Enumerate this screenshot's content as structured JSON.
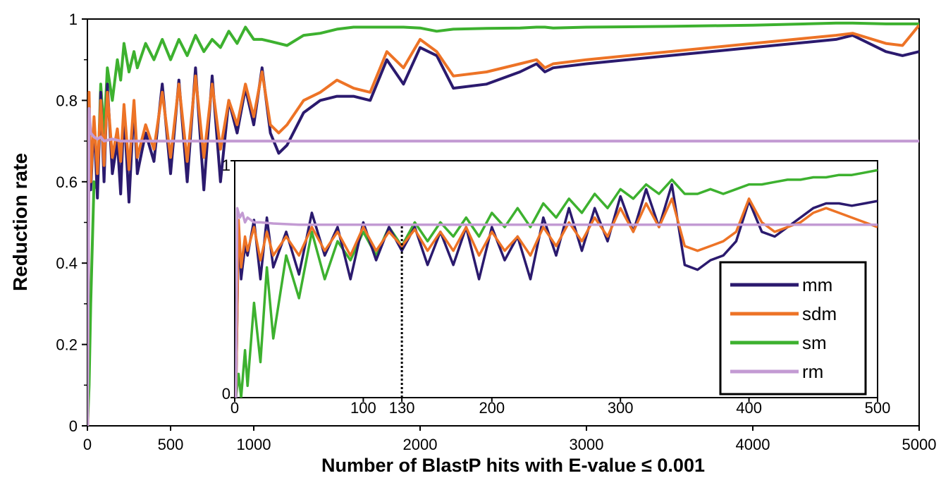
{
  "chart_data": [
    {
      "type": "line",
      "xlabel": "Number of BlastP hits with E-value ≤ 0.001",
      "ylabel": "Reduction rate",
      "xlim": [
        0,
        5000
      ],
      "ylim": [
        0,
        1
      ],
      "x_ticks": [
        "0",
        "500",
        "1000",
        "2000",
        "3000",
        "4000",
        "5000"
      ],
      "y_ticks": [
        "0",
        "0.2",
        "0.4",
        "0.6",
        "0.8",
        "1"
      ],
      "grid": false,
      "legend": "inside, lower-right of inset",
      "series": [
        {
          "name": "mm",
          "color": "#2b1a6e",
          "x": [
            1,
            10,
            20,
            40,
            60,
            80,
            100,
            120,
            150,
            180,
            200,
            220,
            250,
            280,
            300,
            350,
            400,
            450,
            500,
            550,
            600,
            650,
            700,
            750,
            800,
            850,
            900,
            950,
            1000,
            1050,
            1100,
            1150,
            1200,
            1300,
            1400,
            1500,
            1600,
            1700,
            1800,
            1900,
            2000,
            2100,
            2200,
            2400,
            2600,
            2700,
            2750,
            2800,
            3000,
            3500,
            4000,
            4500,
            4600,
            4800,
            4900,
            5000
          ],
          "y": [
            0.0,
            0.8,
            0.58,
            0.75,
            0.56,
            0.82,
            0.6,
            0.84,
            0.62,
            0.7,
            0.57,
            0.78,
            0.55,
            0.79,
            0.62,
            0.72,
            0.65,
            0.84,
            0.62,
            0.85,
            0.6,
            0.88,
            0.58,
            0.86,
            0.6,
            0.8,
            0.72,
            0.83,
            0.74,
            0.88,
            0.72,
            0.67,
            0.69,
            0.77,
            0.8,
            0.81,
            0.81,
            0.8,
            0.9,
            0.84,
            0.93,
            0.91,
            0.83,
            0.84,
            0.87,
            0.89,
            0.87,
            0.88,
            0.89,
            0.91,
            0.93,
            0.95,
            0.96,
            0.92,
            0.91,
            0.92
          ]
        },
        {
          "name": "sdm",
          "color": "#ed7326",
          "x": [
            1,
            10,
            20,
            40,
            60,
            80,
            100,
            120,
            150,
            180,
            200,
            220,
            250,
            280,
            300,
            350,
            400,
            450,
            500,
            550,
            600,
            650,
            700,
            750,
            800,
            850,
            900,
            950,
            1000,
            1050,
            1100,
            1150,
            1200,
            1300,
            1400,
            1500,
            1600,
            1700,
            1800,
            1900,
            2000,
            2100,
            2200,
            2400,
            2600,
            2700,
            2750,
            2800,
            3000,
            3500,
            4000,
            4500,
            4600,
            4800,
            4900,
            5000
          ],
          "y": [
            0.0,
            0.82,
            0.6,
            0.76,
            0.62,
            0.8,
            0.64,
            0.82,
            0.66,
            0.73,
            0.65,
            0.79,
            0.63,
            0.8,
            0.66,
            0.74,
            0.68,
            0.82,
            0.66,
            0.84,
            0.65,
            0.86,
            0.66,
            0.84,
            0.68,
            0.8,
            0.74,
            0.84,
            0.76,
            0.87,
            0.74,
            0.72,
            0.74,
            0.8,
            0.82,
            0.85,
            0.83,
            0.82,
            0.92,
            0.88,
            0.95,
            0.92,
            0.86,
            0.87,
            0.89,
            0.9,
            0.88,
            0.89,
            0.9,
            0.92,
            0.94,
            0.96,
            0.965,
            0.94,
            0.935,
            0.985
          ]
        },
        {
          "name": "sm",
          "color": "#3db12f",
          "x": [
            1,
            10,
            20,
            40,
            60,
            80,
            100,
            120,
            150,
            180,
            200,
            220,
            250,
            280,
            300,
            350,
            400,
            450,
            500,
            550,
            600,
            650,
            700,
            750,
            800,
            850,
            900,
            950,
            1000,
            1050,
            1100,
            1150,
            1200,
            1300,
            1400,
            1500,
            1600,
            1700,
            1800,
            1900,
            2000,
            2100,
            2200,
            2400,
            2600,
            2700,
            2750,
            2800,
            3000,
            3500,
            4000,
            4500,
            4600,
            4800,
            4900,
            5000
          ],
          "y": [
            0.0,
            0.1,
            0.3,
            0.6,
            0.58,
            0.84,
            0.72,
            0.88,
            0.8,
            0.9,
            0.85,
            0.94,
            0.87,
            0.92,
            0.88,
            0.94,
            0.9,
            0.95,
            0.9,
            0.95,
            0.91,
            0.96,
            0.92,
            0.95,
            0.93,
            0.97,
            0.94,
            0.98,
            0.95,
            0.95,
            0.945,
            0.94,
            0.935,
            0.96,
            0.965,
            0.975,
            0.98,
            0.98,
            0.98,
            0.98,
            0.978,
            0.97,
            0.975,
            0.977,
            0.978,
            0.98,
            0.98,
            0.978,
            0.98,
            0.982,
            0.985,
            0.99,
            0.99,
            0.988,
            0.988,
            0.988
          ]
        },
        {
          "name": "rm",
          "color": "#c39bd3",
          "x": [
            1,
            10,
            20,
            40,
            60,
            80,
            100,
            150,
            200,
            300,
            500,
            800,
            1000,
            1200,
            1500,
            2000,
            3000,
            4000,
            5000
          ],
          "y": [
            0.0,
            0.78,
            0.72,
            0.71,
            0.705,
            0.71,
            0.7,
            0.705,
            0.7,
            0.7,
            0.7,
            0.7,
            0.7,
            0.7,
            0.7,
            0.7,
            0.7,
            0.7,
            0.7
          ]
        }
      ]
    },
    {
      "type": "line",
      "xlim": [
        0,
        500
      ],
      "ylim": [
        0,
        1
      ],
      "x_ticks": [
        "0",
        "100",
        "130",
        "200",
        "300",
        "400",
        "500"
      ],
      "y_ticks": [
        "0",
        "1"
      ],
      "reference_line_x": 130,
      "series": [
        {
          "name": "mm",
          "color": "#2b1a6e",
          "x": [
            1,
            3,
            5,
            8,
            10,
            15,
            20,
            25,
            30,
            40,
            50,
            60,
            70,
            80,
            90,
            100,
            110,
            120,
            130,
            140,
            150,
            160,
            170,
            180,
            190,
            200,
            210,
            220,
            230,
            240,
            250,
            260,
            270,
            280,
            290,
            300,
            310,
            320,
            330,
            340,
            350,
            360,
            370,
            380,
            390,
            400,
            410,
            420,
            430,
            440,
            450,
            460,
            470,
            480,
            490,
            500
          ],
          "y": [
            0.0,
            0.72,
            0.5,
            0.64,
            0.6,
            0.75,
            0.5,
            0.76,
            0.55,
            0.7,
            0.52,
            0.78,
            0.6,
            0.72,
            0.5,
            0.74,
            0.58,
            0.72,
            0.62,
            0.72,
            0.56,
            0.7,
            0.56,
            0.72,
            0.5,
            0.72,
            0.58,
            0.68,
            0.5,
            0.76,
            0.6,
            0.8,
            0.62,
            0.8,
            0.66,
            0.85,
            0.7,
            0.88,
            0.72,
            0.9,
            0.56,
            0.54,
            0.58,
            0.6,
            0.66,
            0.83,
            0.7,
            0.68,
            0.72,
            0.76,
            0.8,
            0.82,
            0.82,
            0.81,
            0.82,
            0.83
          ]
        },
        {
          "name": "sdm",
          "color": "#ed7326",
          "x": [
            1,
            3,
            5,
            8,
            10,
            15,
            20,
            25,
            30,
            40,
            50,
            60,
            70,
            80,
            90,
            100,
            110,
            120,
            130,
            140,
            150,
            160,
            170,
            180,
            190,
            200,
            210,
            220,
            230,
            240,
            250,
            260,
            270,
            280,
            290,
            300,
            310,
            320,
            330,
            340,
            350,
            360,
            370,
            380,
            390,
            400,
            410,
            420,
            430,
            440,
            450,
            460,
            470,
            480,
            490,
            500
          ],
          "y": [
            0.0,
            0.75,
            0.55,
            0.68,
            0.62,
            0.72,
            0.58,
            0.7,
            0.6,
            0.68,
            0.6,
            0.72,
            0.62,
            0.7,
            0.6,
            0.72,
            0.62,
            0.7,
            0.64,
            0.71,
            0.62,
            0.7,
            0.62,
            0.72,
            0.6,
            0.7,
            0.62,
            0.68,
            0.6,
            0.72,
            0.64,
            0.74,
            0.66,
            0.76,
            0.68,
            0.8,
            0.7,
            0.82,
            0.72,
            0.84,
            0.64,
            0.62,
            0.64,
            0.66,
            0.7,
            0.84,
            0.74,
            0.7,
            0.72,
            0.74,
            0.78,
            0.8,
            0.78,
            0.76,
            0.74,
            0.72
          ]
        },
        {
          "name": "sm",
          "color": "#3db12f",
          "x": [
            1,
            3,
            5,
            8,
            10,
            15,
            20,
            25,
            30,
            40,
            50,
            60,
            70,
            80,
            90,
            100,
            110,
            120,
            130,
            140,
            150,
            160,
            170,
            180,
            190,
            200,
            210,
            220,
            230,
            240,
            250,
            260,
            270,
            280,
            290,
            300,
            310,
            320,
            330,
            340,
            350,
            360,
            370,
            380,
            390,
            400,
            410,
            420,
            430,
            440,
            450,
            460,
            470,
            480,
            490,
            500
          ],
          "y": [
            0.0,
            0.1,
            0.0,
            0.2,
            0.05,
            0.4,
            0.15,
            0.55,
            0.25,
            0.6,
            0.42,
            0.7,
            0.5,
            0.66,
            0.58,
            0.7,
            0.6,
            0.72,
            0.64,
            0.74,
            0.66,
            0.74,
            0.68,
            0.76,
            0.68,
            0.78,
            0.72,
            0.8,
            0.72,
            0.82,
            0.76,
            0.84,
            0.78,
            0.86,
            0.8,
            0.88,
            0.84,
            0.9,
            0.86,
            0.92,
            0.86,
            0.86,
            0.88,
            0.86,
            0.88,
            0.9,
            0.9,
            0.91,
            0.92,
            0.92,
            0.93,
            0.93,
            0.94,
            0.94,
            0.95,
            0.96
          ]
        },
        {
          "name": "rm",
          "color": "#c39bd3",
          "x": [
            1,
            2,
            4,
            6,
            8,
            10,
            15,
            20,
            30,
            50,
            100,
            200,
            300,
            400,
            500
          ],
          "y": [
            0.0,
            0.8,
            0.76,
            0.78,
            0.74,
            0.76,
            0.74,
            0.74,
            0.735,
            0.73,
            0.73,
            0.73,
            0.73,
            0.73,
            0.73
          ]
        }
      ]
    }
  ]
}
